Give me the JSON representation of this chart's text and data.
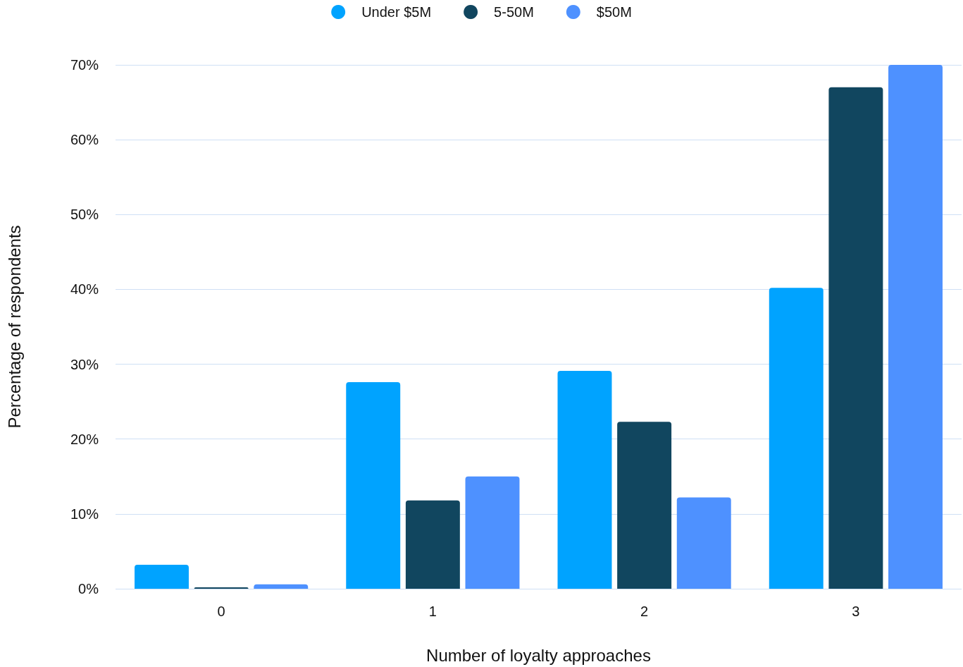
{
  "chart_data": {
    "type": "bar",
    "xlabel": "Number of loyalty approaches",
    "ylabel": "Percentage of respondents",
    "categories": [
      "0",
      "1",
      "2",
      "3"
    ],
    "series": [
      {
        "name": "Under $5M",
        "color": "#00a3ff",
        "values": [
          3.2,
          27.6,
          29.1,
          40.2
        ]
      },
      {
        "name": "5-50M",
        "color": "#11465f",
        "values": [
          0.2,
          11.8,
          22.3,
          67.0
        ]
      },
      {
        "name": "$50M",
        "color": "#4e91ff",
        "values": [
          0.6,
          15.0,
          12.2,
          70.0
        ]
      }
    ],
    "ylim": [
      0,
      70
    ],
    "yticks": [
      {
        "value": 0,
        "label": "0%"
      },
      {
        "value": 10,
        "label": "10%"
      },
      {
        "value": 20,
        "label": "20%"
      },
      {
        "value": 30,
        "label": "30%"
      },
      {
        "value": 40,
        "label": "40%"
      },
      {
        "value": 50,
        "label": "50%"
      },
      {
        "value": 60,
        "label": "60%"
      },
      {
        "value": 70,
        "label": "70%"
      }
    ],
    "grid": "y",
    "legend": "top"
  }
}
